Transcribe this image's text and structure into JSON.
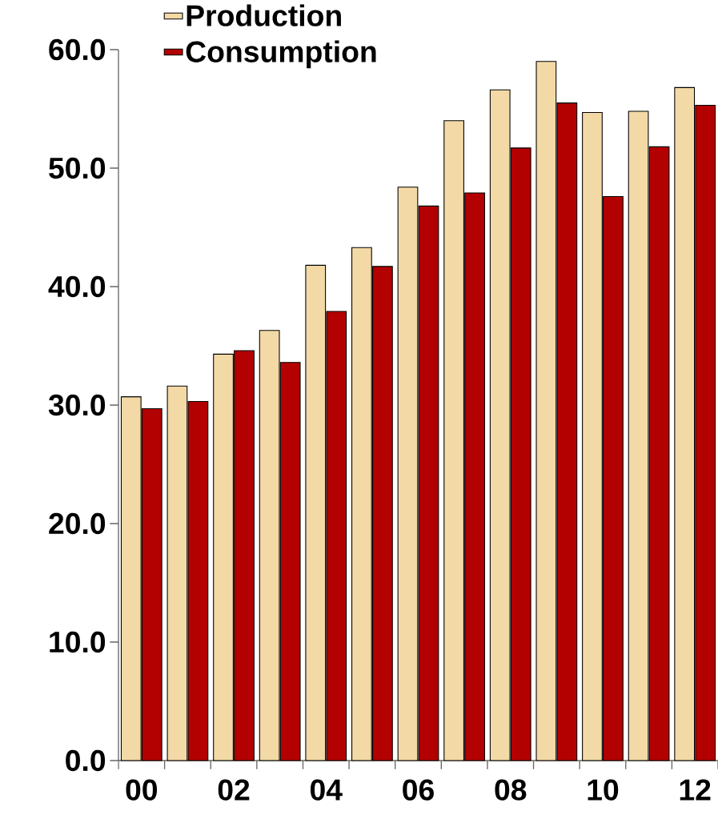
{
  "chart_data": {
    "type": "bar",
    "categories": [
      "00",
      null,
      "02",
      null,
      "04",
      null,
      "06",
      null,
      "08",
      null,
      "10",
      null,
      "12"
    ],
    "series": [
      {
        "name": "Production",
        "color": "#f2d9a6",
        "values": [
          30.7,
          31.6,
          34.3,
          36.3,
          41.8,
          43.3,
          48.4,
          54.0,
          56.6,
          59.0,
          54.7,
          54.8,
          56.8
        ]
      },
      {
        "name": "Consumption",
        "color": "#b30000",
        "values": [
          29.7,
          30.3,
          34.6,
          33.6,
          37.9,
          41.7,
          46.8,
          47.9,
          51.7,
          55.5,
          47.6,
          51.8,
          55.3
        ]
      }
    ],
    "ylim": [
      0,
      60
    ],
    "yticks": [
      {
        "value": 0,
        "label": "0.0"
      },
      {
        "value": 10,
        "label": "10.0"
      },
      {
        "value": 20,
        "label": "20.0"
      },
      {
        "value": 30,
        "label": "30.0"
      },
      {
        "value": 40,
        "label": "40.0"
      },
      {
        "value": 50,
        "label": "50.0"
      },
      {
        "value": 60,
        "label": "60.0"
      }
    ],
    "legend": "top left"
  }
}
